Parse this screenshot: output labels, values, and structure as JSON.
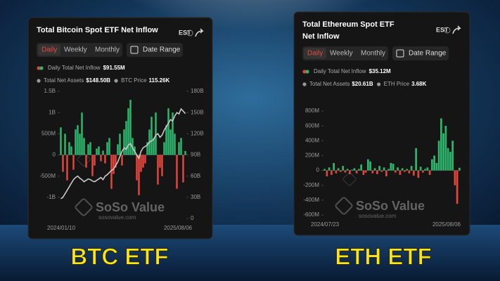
{
  "chart_data": [
    {
      "type": "bar",
      "categories": [
        "2024/01/10",
        null,
        null,
        null,
        null,
        null,
        null,
        null,
        null,
        null,
        null,
        null,
        null,
        null,
        null,
        null,
        null,
        null,
        null,
        null,
        null,
        null,
        null,
        null,
        null,
        null,
        null,
        null,
        null,
        null,
        null,
        null,
        null,
        null,
        null,
        null,
        null,
        null,
        null,
        null,
        null,
        null,
        null,
        null,
        null,
        null,
        null,
        null,
        null,
        null,
        null,
        null,
        null,
        null,
        null,
        null,
        null,
        null,
        null,
        "2025/08/06"
      ],
      "positive_color": "#2fb46c",
      "negative_color": "#e0463c",
      "series": [
        {
          "name": "Daily Total Net Inflow",
          "values": [
            650,
            -400,
            500,
            -600,
            300,
            200,
            -350,
            600,
            700,
            500,
            1000,
            400,
            -300,
            250,
            300,
            -500,
            -250,
            150,
            200,
            -150,
            100,
            -200,
            300,
            400,
            -800,
            -450,
            -300,
            250,
            500,
            -250,
            600,
            800,
            1100,
            1300,
            400,
            200,
            -600,
            -950,
            -400,
            -300,
            -200,
            300,
            600,
            900,
            400,
            1000,
            -700,
            -300,
            -500,
            300,
            700,
            1100,
            600,
            1000,
            500,
            -800,
            300,
            400,
            -650,
            92
          ]
        },
        {
          "name": "Total Net Assets",
          "type": "line",
          "axis": "y2",
          "color": "#c8c8c8",
          "values": [
            28,
            30,
            35,
            40,
            45,
            50,
            55,
            58,
            60,
            57,
            55,
            52,
            54,
            56,
            55,
            53,
            52,
            54,
            56,
            58,
            55,
            60,
            62,
            65,
            68,
            70,
            75,
            80,
            88,
            95,
            100,
            98,
            104,
            106,
            100,
            95,
            90,
            85,
            95,
            100,
            102,
            104,
            108,
            110,
            112,
            118,
            120,
            115,
            118,
            125,
            130,
            135,
            140,
            138,
            145,
            150,
            148,
            155,
            152,
            148.5
          ]
        }
      ],
      "ylim": [
        -1500,
        1500
      ],
      "yticks": [
        {
          "value": 1500,
          "label": "1.5B"
        },
        {
          "value": 1000,
          "label": "1B"
        },
        {
          "value": 500,
          "label": "500M"
        },
        0,
        {
          "value": -500,
          "label": "-500M"
        },
        {
          "value": -1000,
          "label": "-1B"
        }
      ],
      "y2lim": [
        0,
        180
      ],
      "y2ticks": [
        {
          "value": 180,
          "label": "180B"
        },
        {
          "value": 150,
          "label": "150B"
        },
        {
          "value": 120,
          "label": "120B"
        },
        {
          "value": 90,
          "label": "90B"
        },
        {
          "value": 60,
          "label": "60B"
        },
        {
          "value": 30,
          "label": "30B"
        },
        0
      ]
    },
    {
      "type": "bar",
      "categories": [
        "2024/07/23",
        null,
        null,
        null,
        null,
        null,
        null,
        null,
        null,
        null,
        null,
        null,
        null,
        null,
        null,
        null,
        null,
        null,
        null,
        null,
        null,
        null,
        null,
        null,
        null,
        null,
        null,
        null,
        null,
        null,
        null,
        null,
        null,
        null,
        null,
        null,
        null,
        null,
        null,
        null,
        null,
        null,
        null,
        null,
        null,
        null,
        null,
        null,
        null,
        null,
        null,
        null,
        null,
        null,
        null,
        null,
        null,
        null,
        null,
        "2025/08/06"
      ],
      "positive_color": "#2fb46c",
      "negative_color": "#e0463c",
      "series": [
        {
          "name": "Daily Total Net Inflow",
          "values": [
            20,
            -80,
            40,
            -60,
            100,
            -40,
            30,
            -20,
            60,
            -30,
            20,
            -50,
            10,
            30,
            -40,
            20,
            80,
            -60,
            -30,
            150,
            120,
            -40,
            30,
            -50,
            60,
            -20,
            40,
            -80,
            20,
            100,
            90,
            -30,
            40,
            -60,
            30,
            -20,
            20,
            -40,
            60,
            -70,
            300,
            -100,
            50,
            -30,
            20,
            40,
            -60,
            150,
            200,
            100,
            400,
            700,
            500,
            600,
            300,
            250,
            400,
            -200,
            -450,
            35
          ]
        }
      ],
      "ylim": [
        -600,
        800
      ],
      "yticks": [
        {
          "value": 800,
          "label": "800M"
        },
        {
          "value": 600,
          "label": "600M"
        },
        {
          "value": 400,
          "label": "400M"
        },
        {
          "value": 200,
          "label": "200M"
        },
        0,
        {
          "value": -200,
          "label": "-200M"
        },
        {
          "value": -400,
          "label": "-400M"
        },
        {
          "value": -600,
          "label": "-600M"
        }
      ]
    }
  ],
  "cards": [
    {
      "title": "Total Bitcoin Spot ETF Net Inflow",
      "timezone": "EST",
      "tabs": [
        "Daily",
        "Weekly",
        "Monthly"
      ],
      "date_range": "Date Range",
      "legend_values": [
        "$91.55M",
        "$148.50B"
      ],
      "extras": [
        {
          "label": "BTC Price",
          "value": "115.26K"
        }
      ],
      "watermark": "SoSo Value",
      "watermark_url": "sosovalue.com"
    },
    {
      "title": "Total Ethereum Spot ETF Net Inflow",
      "timezone": "EST",
      "tabs": [
        "Daily",
        "Weekly",
        "Monthly"
      ],
      "date_range": "Date Range",
      "legend_values": [
        "$35.12M"
      ],
      "extras": [
        {
          "label": "Total Net Assets",
          "value": "$20.61B"
        },
        {
          "label": "ETH Price",
          "value": "3.68K"
        }
      ],
      "watermark": "SoSo Value",
      "watermark_url": "sosovalue.com"
    }
  ],
  "banner": [
    "BTC ETF",
    "ETH ETF"
  ]
}
